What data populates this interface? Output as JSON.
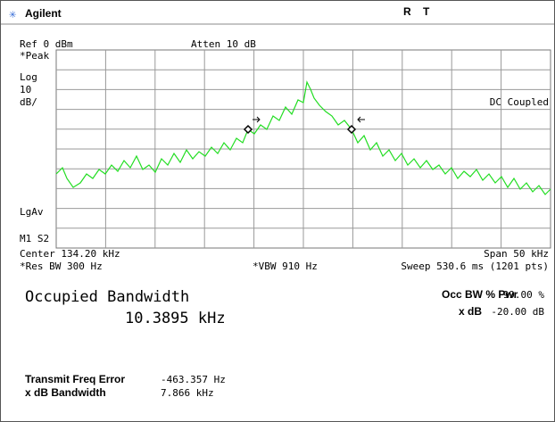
{
  "header": {
    "brand": "Agilent",
    "status_r": "R",
    "status_t": "T"
  },
  "screen": {
    "ref_level": "Ref 0 dBm",
    "attenuation": "Atten 10 dB",
    "left_labels": [
      "*Peak",
      "Log",
      "10",
      "dB/"
    ],
    "coupling": "DC Coupled",
    "average": "LgAv",
    "marker_state": "M1 S2"
  },
  "settings": {
    "center": "Center 134.20 kHz",
    "span": "Span 50 kHz",
    "res_bw": "*Res BW 300 Hz",
    "vbw": "*VBW 910 Hz",
    "sweep": "Sweep 530.6 ms (1201 pts)"
  },
  "measurement": {
    "title": "Occupied Bandwidth",
    "value": "10.3895 kHz",
    "pwr_label": "Occ BW % Pwr",
    "pwr_value": "99.00 %",
    "xdb_label": "x dB",
    "xdb_value": "-20.00 dB",
    "freq_error_label": "Transmit Freq Error",
    "freq_error_value": "-463.357 Hz",
    "xdb_bw_label": "x dB Bandwidth",
    "xdb_bw_value": "7.866 kHz"
  }
}
